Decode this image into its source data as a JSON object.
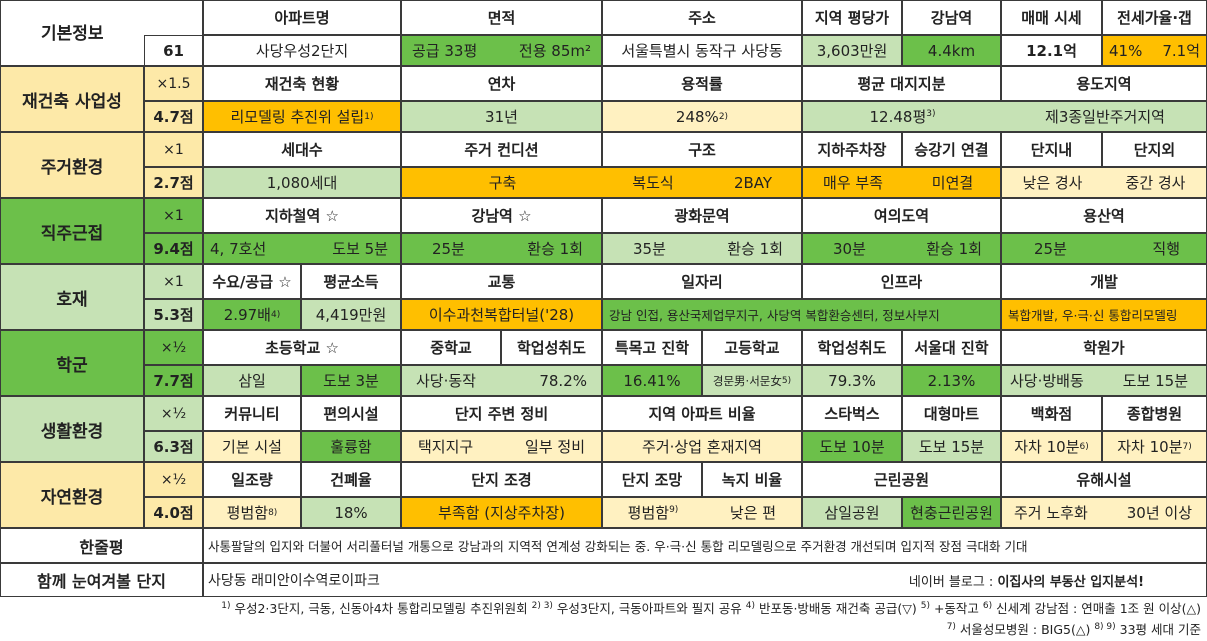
{
  "colors": {
    "white": "#ffffff",
    "cream": "#fde9a8",
    "orange": "#ffbf00",
    "green": "#6cc04a",
    "light_green": "#c6e2b5",
    "light_yellow": "#fff1c1"
  },
  "basic": {
    "label": "기본정보",
    "score": "61",
    "headers": [
      "아파트명",
      "면적",
      "주소",
      "지역 평당가",
      "강남역",
      "매매 시세",
      "전세가율·갭"
    ],
    "apt_name": "사당우성2단지",
    "area_supply": "공급 33평",
    "area_exclusive": "전용 85m²",
    "address": "서울특별시 동작구 사당동",
    "price_per_pyeong": "3,603만원",
    "gangnam_dist": "4.4km",
    "sale_price": "12.1억",
    "jeonse_rate": "41%",
    "gap": "7.1억"
  },
  "rebuild": {
    "label": "재건축 사업성",
    "mult": "×1.5",
    "score": "4.7점",
    "headers": [
      "재건축 현황",
      "연차",
      "용적률",
      "평균 대지지분",
      "용도지역"
    ],
    "status": "리모델링 추진위 설립",
    "status_sup": "1)",
    "age": "31년",
    "far": "248%",
    "far_sup": "2)",
    "land_share": "12.48평",
    "land_share_sup": "3)",
    "zoning": "제3종일반주거지역"
  },
  "living": {
    "label": "주거환경",
    "mult": "×1",
    "score": "2.7점",
    "headers": [
      "세대수",
      "주거 컨디션",
      "구조",
      "지하주차장",
      "승강기 연결",
      "단지내",
      "단지외"
    ],
    "households": "1,080세대",
    "condition": "구축",
    "structure_a": "복도식",
    "structure_b": "2BAY",
    "parking": "매우 부족",
    "elevator": "미연결",
    "inner_slope": "낮은 경사",
    "outer_slope": "중간 경사"
  },
  "commute": {
    "label": "직주근접",
    "mult": "×1",
    "score": "9.4점",
    "headers": [
      "지하철역 ☆",
      "강남역 ☆",
      "광화문역",
      "여의도역",
      "용산역"
    ],
    "subway_lines": "4, 7호선",
    "subway_walk": "도보 5분",
    "gangnam_time": "25분",
    "gangnam_transfer": "환승 1회",
    "gwanghwamun_time": "35분",
    "gwanghwamun_transfer": "환승 1회",
    "yeouido_time": "30분",
    "yeouido_transfer": "환승 1회",
    "yongsan_time": "25분",
    "yongsan_transfer": "직행"
  },
  "development": {
    "label": "호재",
    "mult": "×1",
    "score": "5.3점",
    "headers": [
      "수요/공급 ☆",
      "평균소득",
      "교통",
      "일자리",
      "인프라",
      "개발"
    ],
    "demand_supply": "2.97배",
    "demand_supply_sup": "4)",
    "income": "4,419만원",
    "transport": "이수과천복합터널('28)",
    "jobs_infra": "강남 인접, 용산국제업무지구, 사당역 복합환승센터, 정보사부지",
    "develop": "복합개발, 우·극·신 통합리모델링"
  },
  "school": {
    "label": "학군",
    "mult": "×½",
    "score": "7.7점",
    "headers": [
      "초등학교 ☆",
      "중학교",
      "학업성취도",
      "특목고 진학",
      "고등학교",
      "학업성취도",
      "서울대 진학",
      "학원가"
    ],
    "elementary": "삼일",
    "elementary_walk": "도보 3분",
    "middle": "사당·동작",
    "middle_score": "78.2%",
    "special_rate": "16.41%",
    "high": "경문男·서문女",
    "high_sup": "5)",
    "high_score": "79.3%",
    "snu_rate": "2.13%",
    "academy": "사당·방배동",
    "academy_walk": "도보 15분"
  },
  "life": {
    "label": "생활환경",
    "mult": "×½",
    "score": "6.3점",
    "headers": [
      "커뮤니티",
      "편의시설",
      "단지 주변 정비",
      "지역 아파트 비율",
      "스타벅스",
      "대형마트",
      "백화점",
      "종합병원"
    ],
    "community": "기본 시설",
    "convenience": "훌륭함",
    "surround_a": "택지지구",
    "surround_b": "일부 정비",
    "apt_ratio": "주거·상업 혼재지역",
    "starbucks": "도보 10분",
    "mart": "도보 15분",
    "dept": "자차 10분",
    "dept_sup": "6)",
    "hospital": "자차 10분",
    "hospital_sup": "7)"
  },
  "nature": {
    "label": "자연환경",
    "mult": "×½",
    "score": "4.0점",
    "headers": [
      "일조량",
      "건폐율",
      "단지 조경",
      "단지 조망",
      "녹지 비율",
      "근린공원",
      "유해시설"
    ],
    "sunlight": "평범함",
    "sunlight_sup": "8)",
    "bcr": "18%",
    "landscape": "부족함 (지상주차장)",
    "view": "평범함",
    "view_sup": "9)",
    "green_ratio": "낮은 편",
    "park_a": "삼일공원",
    "park_b": "현충근린공원",
    "hazard_a": "주거 노후화",
    "hazard_b": "30년 이상"
  },
  "summary": {
    "label": "한줄평",
    "text": "사통팔달의 입지와 더불어 서리풀터널 개통으로 강남과의 지역적 연계성 강화되는 중. 우·극·신 통합 리모델링으로 주거환경 개선되며 입지적 장점 극대화 기대"
  },
  "related": {
    "label": "함께 눈여겨볼 단지",
    "text": "사당동 래미안이수역로이파크",
    "blog_prefix": "네이버 블로그 : ",
    "blog_name": "이집사의 부동산 입지분석!"
  },
  "footnotes": {
    "line1_a_sup": "1)",
    "line1_a": " 우성2·3단지, 극동, 신동아4차 통합리모델링 추진위원회 ",
    "line1_b_sup": "2) 3)",
    "line1_b": " 우성3단지, 극동아파트와 필지 공유 ",
    "line1_c_sup": "4)",
    "line1_c": " 반포동·방배동 재건축 공급(▽) ",
    "line1_d_sup": "5)",
    "line1_d": " +동작고 ",
    "line1_e_sup": "6)",
    "line1_e": " 신세계 강남점 : 연매출 1조 원 이상(△)",
    "line2_a_sup": "7)",
    "line2_a": " 서울성모병원 : BIG5(△) ",
    "line2_b_sup": "8) 9)",
    "line2_b": " 33평 세대 기준"
  }
}
